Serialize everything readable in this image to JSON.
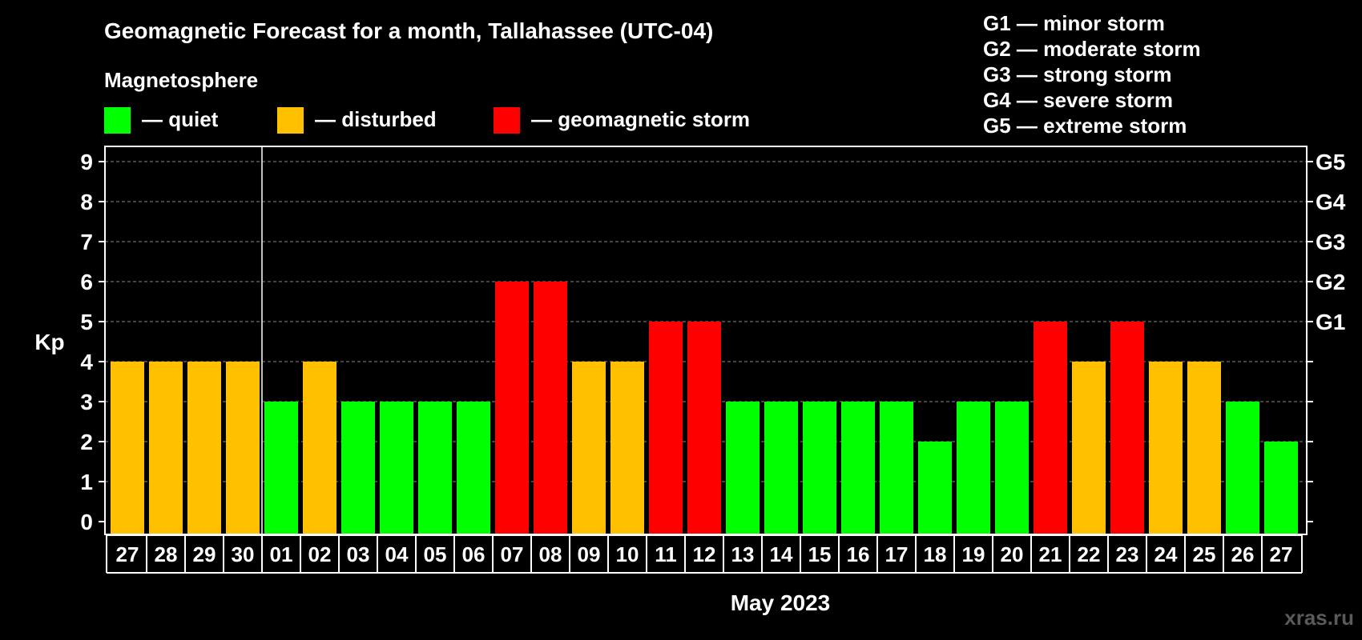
{
  "chart_data": {
    "type": "bar",
    "title": "Geomagnetic Forecast for a month, Tallahassee (UTC-04)",
    "subtitle": "Magnetosphere",
    "ylabel": "Kp",
    "xlabel": "May 2023",
    "ylim": [
      0,
      9
    ],
    "y_ticks": [
      "0",
      "1",
      "2",
      "3",
      "4",
      "5",
      "6",
      "7",
      "8",
      "9"
    ],
    "right_axis_labels": [
      {
        "kp": 5,
        "label": "G1"
      },
      {
        "kp": 6,
        "label": "G2"
      },
      {
        "kp": 7,
        "label": "G3"
      },
      {
        "kp": 8,
        "label": "G4"
      },
      {
        "kp": 9,
        "label": "G5"
      }
    ],
    "categories": [
      "27",
      "28",
      "29",
      "30",
      "01",
      "02",
      "03",
      "04",
      "05",
      "06",
      "07",
      "08",
      "09",
      "10",
      "11",
      "12",
      "13",
      "14",
      "15",
      "16",
      "17",
      "18",
      "19",
      "20",
      "21",
      "22",
      "23",
      "24",
      "25",
      "26",
      "27"
    ],
    "values": [
      4,
      4,
      4,
      4,
      3,
      4,
      3,
      3,
      3,
      3,
      6,
      6,
      4,
      4,
      5,
      5,
      3,
      3,
      3,
      3,
      3,
      2,
      3,
      3,
      5,
      4,
      5,
      4,
      4,
      3,
      2
    ],
    "month_boundary_after_index": 3,
    "legend": [
      {
        "label": "— quiet",
        "color": "#00ff00"
      },
      {
        "label": "— disturbed",
        "color": "#ffc000"
      },
      {
        "label": "— geomagnetic storm",
        "color": "#ff0000"
      }
    ],
    "storm_scale": [
      "G1 — minor storm",
      "G2 — moderate storm",
      "G3 — strong storm",
      "G4 — severe storm",
      "G5 — extreme storm"
    ],
    "grid": true
  },
  "watermark": "xras.ru",
  "colors": {
    "background": "#000000",
    "quiet": "#00ff00",
    "disturbed": "#ffc000",
    "storm": "#ff0000",
    "axis": "#ffffff",
    "grid": "#888888",
    "watermark": "#5a5a5a"
  }
}
